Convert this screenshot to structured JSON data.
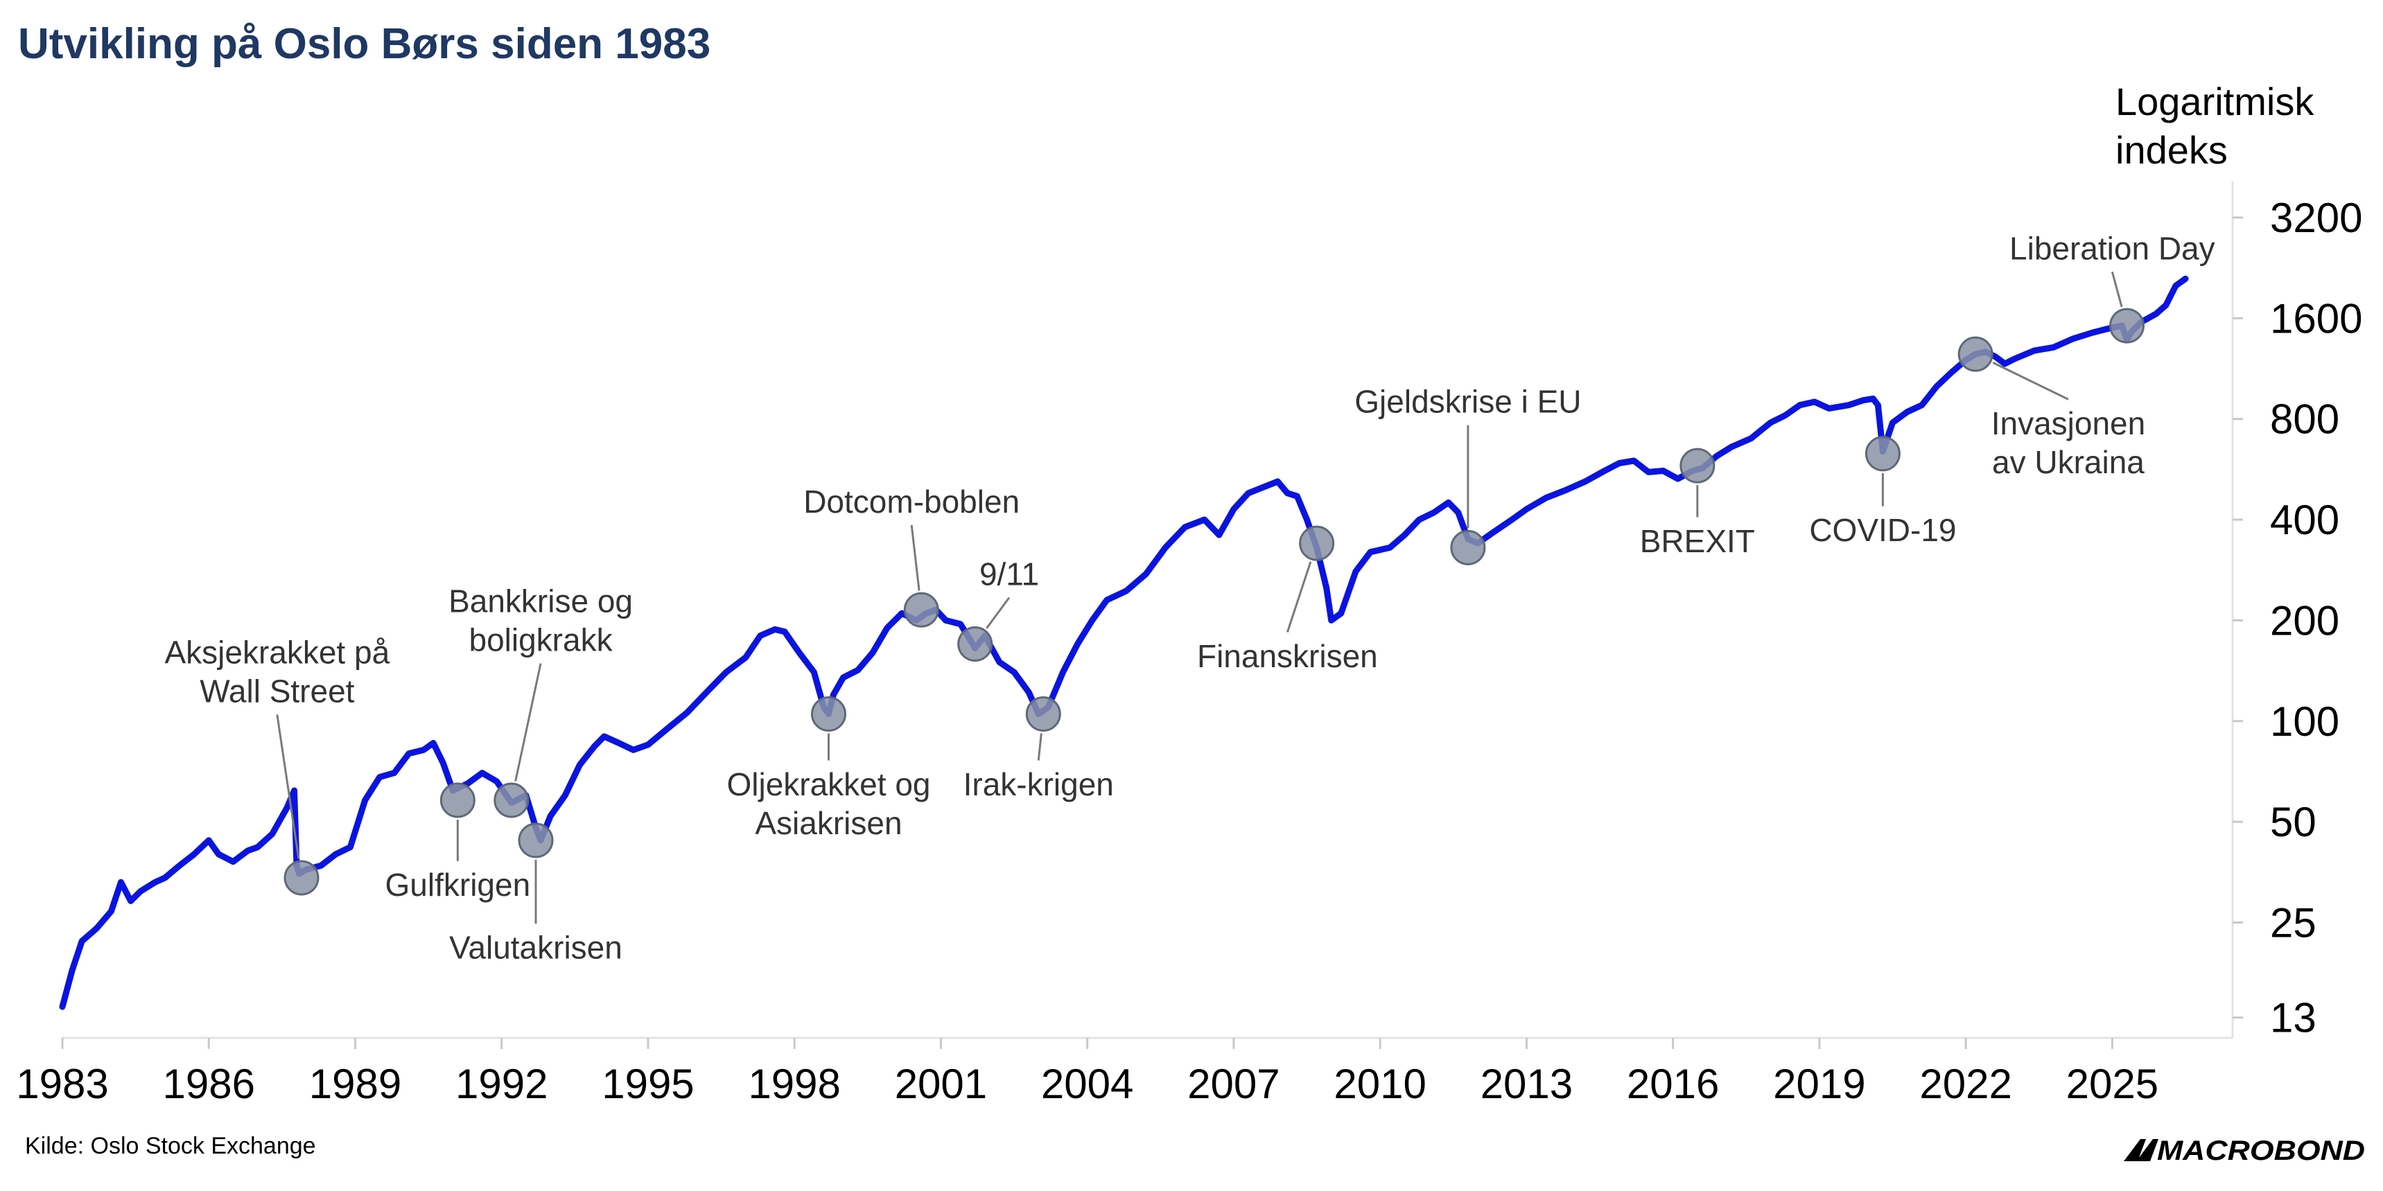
{
  "chart_data": {
    "type": "line",
    "title": "Utvikling på Oslo Børs siden 1983",
    "ylabel_line1": "Logaritmisk",
    "ylabel_line2": "indeks",
    "yscale": "log",
    "y_ticks": [
      13,
      25,
      50,
      100,
      200,
      400,
      800,
      1600,
      3200
    ],
    "y_tick_labels": [
      "13",
      "25",
      "50",
      "100",
      "200",
      "400",
      "800",
      "1600",
      "3200"
    ],
    "x_ticks": [
      1983,
      1986,
      1989,
      1992,
      1995,
      1998,
      2001,
      2004,
      2007,
      2010,
      2013,
      2016,
      2019,
      2022,
      2025
    ],
    "x_tick_labels": [
      "1983",
      "1986",
      "1989",
      "1992",
      "1995",
      "1998",
      "2001",
      "2004",
      "2007",
      "2010",
      "2013",
      "2016",
      "2019",
      "2022",
      "2025"
    ],
    "xlim": [
      1983,
      2026.6
    ],
    "ylim": [
      11.3,
      4100
    ],
    "grid": false,
    "line_color": "#0a14e0",
    "marker_color": "#8a93a6",
    "series": [
      {
        "x": [
          1983.0,
          1983.2,
          1983.4,
          1983.7,
          1984.0,
          1984.2,
          1984.4,
          1984.6,
          1984.9,
          1985.1,
          1985.4,
          1985.7,
          1986.0,
          1986.2,
          1986.5,
          1986.8,
          1987.0,
          1987.3,
          1987.6,
          1987.75,
          1987.8,
          1987.85,
          1988.0,
          1988.3,
          1988.6,
          1988.9,
          1989.2,
          1989.5,
          1989.8,
          1990.1,
          1990.4,
          1990.6,
          1990.8,
          1991.0,
          1991.3,
          1991.6,
          1991.9,
          1992.2,
          1992.5,
          1992.7,
          1992.8,
          1993.0,
          1993.3,
          1993.6,
          1993.9,
          1994.1,
          1994.4,
          1994.7,
          1995.0,
          1995.4,
          1995.8,
          1996.2,
          1996.6,
          1997.0,
          1997.3,
          1997.6,
          1997.8,
          1998.1,
          1998.4,
          1998.6,
          1998.7,
          1998.8,
          1999.0,
          1999.3,
          1999.6,
          1999.9,
          2000.2,
          2000.5,
          2000.7,
          2000.9,
          2001.1,
          2001.4,
          2001.6,
          2001.7,
          2001.9,
          2002.2,
          2002.5,
          2002.8,
          2003.0,
          2003.2,
          2003.5,
          2003.8,
          2004.1,
          2004.4,
          2004.8,
          2005.2,
          2005.6,
          2006.0,
          2006.4,
          2006.7,
          2007.0,
          2007.3,
          2007.6,
          2007.9,
          2008.1,
          2008.3,
          2008.5,
          2008.7,
          2008.9,
          2009.0,
          2009.2,
          2009.5,
          2009.8,
          2010.2,
          2010.5,
          2010.8,
          2011.1,
          2011.4,
          2011.6,
          2011.8,
          2012.0,
          2012.3,
          2012.7,
          2013.0,
          2013.4,
          2013.8,
          2014.2,
          2014.6,
          2014.9,
          2015.2,
          2015.5,
          2015.8,
          2016.1,
          2016.4,
          2016.6,
          2016.9,
          2017.2,
          2017.6,
          2018.0,
          2018.3,
          2018.6,
          2018.9,
          2019.2,
          2019.6,
          2019.9,
          2020.1,
          2020.2,
          2020.3,
          2020.5,
          2020.8,
          2021.1,
          2021.4,
          2021.7,
          2022.0,
          2022.2,
          2022.4,
          2022.6,
          2022.8,
          2023.0,
          2023.4,
          2023.8,
          2024.2,
          2024.6,
          2025.0,
          2025.2,
          2025.3,
          2025.4,
          2025.6,
          2025.9,
          2026.1,
          2026.3,
          2026.5
        ],
        "y": [
          14,
          18,
          22,
          24,
          27,
          33,
          29,
          31,
          33,
          34,
          37,
          40,
          44,
          40,
          38,
          41,
          42,
          46,
          55,
          62,
          37,
          35,
          36,
          37,
          40,
          42,
          58,
          68,
          70,
          80,
          82,
          86,
          75,
          62,
          65,
          70,
          66,
          57,
          60,
          48,
          44,
          52,
          60,
          74,
          84,
          90,
          86,
          82,
          85,
          95,
          106,
          122,
          140,
          155,
          180,
          188,
          185,
          160,
          140,
          110,
          105,
          120,
          135,
          142,
          160,
          190,
          210,
          200,
          210,
          215,
          200,
          195,
          175,
          165,
          180,
          150,
          140,
          122,
          105,
          110,
          140,
          170,
          200,
          230,
          245,
          275,
          330,
          380,
          400,
          360,
          430,
          480,
          500,
          520,
          480,
          470,
          400,
          330,
          250,
          200,
          210,
          280,
          320,
          330,
          360,
          400,
          420,
          450,
          420,
          350,
          340,
          365,
          400,
          430,
          465,
          490,
          520,
          560,
          590,
          600,
          555,
          560,
          530,
          560,
          570,
          620,
          660,
          700,
          780,
          820,
          880,
          900,
          860,
          880,
          910,
          920,
          880,
          640,
          780,
          840,
          880,
          1000,
          1100,
          1200,
          1250,
          1270,
          1230,
          1170,
          1210,
          1280,
          1310,
          1390,
          1450,
          1500,
          1520,
          1380,
          1460,
          1560,
          1650,
          1750,
          2000,
          2100
        ]
      }
    ],
    "annotations": [
      {
        "x": 1987.9,
        "y": 34,
        "label": "Aksjekrakket på|Wall Street",
        "label_x": 1987.4,
        "label_y": 114,
        "anchor": "middle",
        "label_above": true
      },
      {
        "x": 1991.1,
        "y": 58,
        "label": "Gulfkrigen",
        "label_x": 1991.1,
        "label_y": 30,
        "anchor": "middle",
        "label_above": false
      },
      {
        "x": 1992.2,
        "y": 58,
        "label": "Bankkrise og|boligkrakk",
        "label_x": 1992.8,
        "label_y": 162,
        "anchor": "middle",
        "label_above": true
      },
      {
        "x": 1992.7,
        "y": 44,
        "label": "Valutakrisen",
        "label_x": 1992.7,
        "label_y": 19.5,
        "anchor": "middle",
        "label_above": false
      },
      {
        "x": 1998.7,
        "y": 105,
        "label": "Oljekrakket og|Asiakrisen",
        "label_x": 1998.7,
        "label_y": 60,
        "anchor": "middle",
        "label_above": false
      },
      {
        "x": 2000.6,
        "y": 215,
        "label": "Dotcom-boblen",
        "label_x": 2000.4,
        "label_y": 420,
        "anchor": "middle",
        "label_above": true
      },
      {
        "x": 2001.7,
        "y": 170,
        "label": "9/11",
        "label_x": 2002.4,
        "label_y": 255,
        "anchor": "middle",
        "label_above": true
      },
      {
        "x": 2003.1,
        "y": 105,
        "label": "Irak-krigen",
        "label_x": 2003.0,
        "label_y": 60,
        "anchor": "middle",
        "label_above": false
      },
      {
        "x": 2008.7,
        "y": 340,
        "label": "Finanskrisen",
        "label_x": 2008.1,
        "label_y": 145,
        "anchor": "middle",
        "label_above": false
      },
      {
        "x": 2011.8,
        "y": 330,
        "label": "Gjeldskrise i EU",
        "label_x": 2011.8,
        "label_y": 835,
        "anchor": "middle",
        "label_above": true
      },
      {
        "x": 2016.5,
        "y": 580,
        "label": "BREXIT",
        "label_x": 2016.5,
        "label_y": 320,
        "anchor": "middle",
        "label_above": false
      },
      {
        "x": 2020.3,
        "y": 630,
        "label": "COVID-19",
        "label_x": 2020.3,
        "label_y": 345,
        "anchor": "middle",
        "label_above": false
      },
      {
        "x": 2022.2,
        "y": 1250,
        "label": "Invasjonen|av Ukraina",
        "label_x": 2024.1,
        "label_y": 720,
        "anchor": "middle",
        "label_above": false
      },
      {
        "x": 2025.3,
        "y": 1520,
        "label": "Liberation Day",
        "label_x": 2025.0,
        "label_y": 2400,
        "anchor": "middle",
        "label_above": true
      }
    ]
  },
  "source_text": "Kilde: Oslo Stock Exchange",
  "brand_text": "MACROBOND"
}
